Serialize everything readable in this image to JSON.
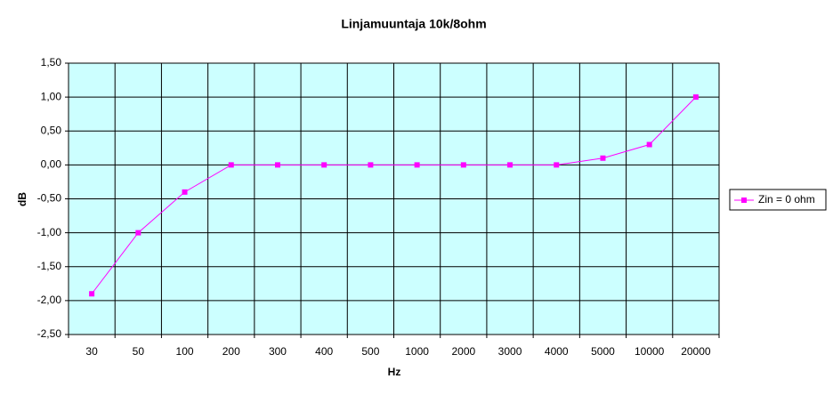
{
  "chart_data": {
    "type": "line",
    "title": "Linjamuuntaja 10k/8ohm",
    "x_label": "Hz",
    "y_label": "dB",
    "categories": [
      "30",
      "50",
      "100",
      "200",
      "300",
      "400",
      "500",
      "1000",
      "2000",
      "3000",
      "4000",
      "5000",
      "10000",
      "20000"
    ],
    "series": [
      {
        "name": "Zin = 0 ohm",
        "color": "#ff00ff",
        "values": [
          -1.9,
          -1.0,
          -0.4,
          0,
          0,
          0,
          0,
          0,
          0,
          0,
          0,
          0.1,
          0.3,
          1.0
        ]
      }
    ],
    "ylim": [
      -2.5,
      1.5
    ],
    "yticks": [
      {
        "value": -2.5,
        "label": "-2,50"
      },
      {
        "value": -2.0,
        "label": "-2,00"
      },
      {
        "value": -1.5,
        "label": "-1,50"
      },
      {
        "value": -1.0,
        "label": "-1,00"
      },
      {
        "value": -0.5,
        "label": "-0,50"
      },
      {
        "value": 0,
        "label": "0,00"
      },
      {
        "value": 0.5,
        "label": "0,50"
      },
      {
        "value": 1.0,
        "label": "1,00"
      },
      {
        "value": 1.5,
        "label": "1,50"
      }
    ],
    "grid": true,
    "legend": "right",
    "plot_background": "#ccffff"
  }
}
